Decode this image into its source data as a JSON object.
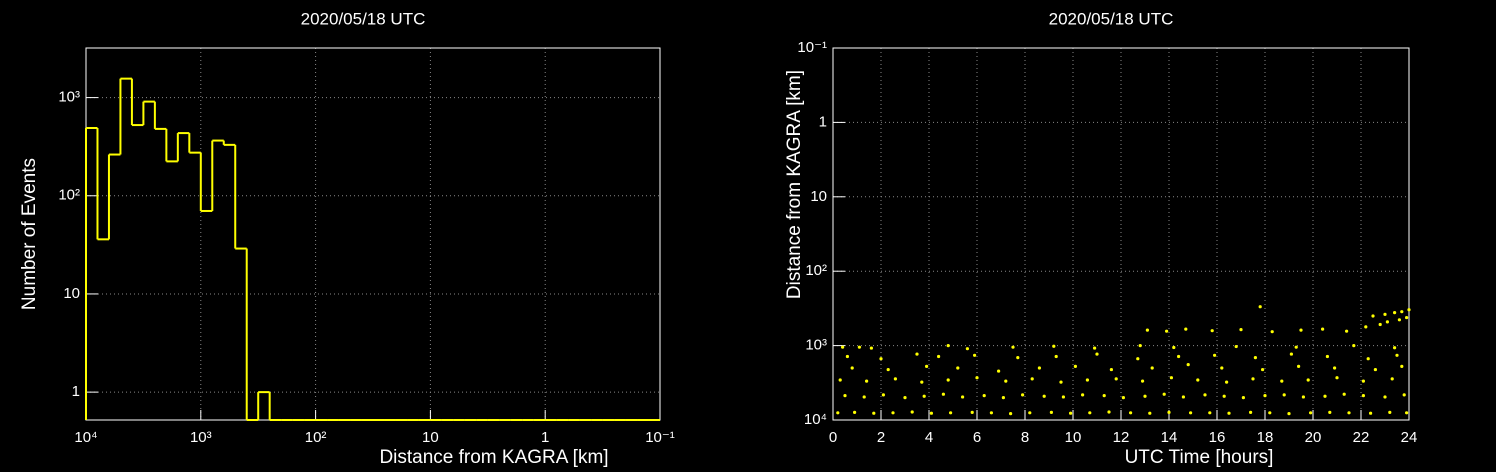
{
  "chart_data": [
    {
      "type": "histogram",
      "title": "2020/05/18 UTC",
      "xlabel": "Distance from KAGRA [km]",
      "ylabel": "Number of Events",
      "xscale": "log",
      "yscale": "log",
      "grid": true,
      "color": "#ffff00",
      "xlim": [
        10000,
        0.1
      ],
      "ylim": [
        0.52,
        3200
      ],
      "xticks": [
        {
          "value": 10000,
          "label": "10⁴"
        },
        {
          "value": 1000,
          "label": "10³"
        },
        {
          "value": 100,
          "label": "10²"
        },
        10,
        1,
        {
          "value": 0.1,
          "label": "10⁻¹"
        }
      ],
      "yticks": [
        1,
        10,
        {
          "value": 100,
          "label": "10²"
        },
        {
          "value": 1000,
          "label": "10³"
        }
      ],
      "bins": [
        10000,
        7943,
        6310,
        5012,
        3981,
        3162,
        2512,
        1995,
        1585,
        1259,
        1000,
        794.3,
        631.0,
        501.2,
        398.1,
        316.2,
        251.2,
        199.5,
        158.5,
        125.9,
        100,
        79.43,
        63.1,
        50.12,
        39.81,
        31.62,
        25.12,
        19.95,
        15.85,
        12.59,
        10,
        7.943,
        6.31,
        5.012,
        3.981,
        3.162,
        2.512,
        1.995,
        1.585,
        1.259,
        1,
        0.7943,
        0.631,
        0.5012,
        0.3981,
        0.3162,
        0.2512,
        0.1995,
        0.1585,
        0.1259,
        0.1
      ],
      "values": [
        490,
        36,
        263,
        1560,
        525,
        910,
        480,
        224,
        435,
        275,
        70,
        365,
        330,
        29,
        0,
        1,
        0,
        0,
        0,
        0,
        0,
        0,
        0,
        0,
        0,
        0,
        0,
        0,
        0,
        0,
        0,
        0,
        0,
        0,
        0,
        0,
        0,
        0,
        0,
        0,
        0,
        0,
        0,
        0,
        0,
        0,
        0,
        0,
        0,
        0
      ]
    },
    {
      "type": "scatter",
      "title": "2020/05/18 UTC",
      "xlabel": "UTC Time [hours]",
      "ylabel": "Distance from KAGRA [km]",
      "yscale": "log",
      "grid": true,
      "color": "#ffff00",
      "xlim": [
        0,
        24
      ],
      "ylim": [
        10000,
        0.1
      ],
      "xticks": [
        0,
        2,
        4,
        6,
        8,
        10,
        12,
        14,
        16,
        18,
        20,
        22,
        24
      ],
      "yticks": [
        {
          "value": 0.1,
          "label": "10⁻¹"
        },
        1,
        10,
        {
          "value": 100,
          "label": "10²"
        },
        {
          "value": 1000,
          "label": "10³"
        },
        {
          "value": 10000,
          "label": "10⁴"
        }
      ],
      "x": [
        0.2,
        0.9,
        1.7,
        2.5,
        3.3,
        4.1,
        4.9,
        5.8,
        6.6,
        7.4,
        8.2,
        9.1,
        9.9,
        10.7,
        11.5,
        12.4,
        13.2,
        14.0,
        14.9,
        15.7,
        16.5,
        17.4,
        18.2,
        19.0,
        19.9,
        20.7,
        21.5,
        22.4,
        23.2,
        23.9,
        0.5,
        1.3,
        2.1,
        3.0,
        3.8,
        4.6,
        5.4,
        6.3,
        7.1,
        7.9,
        8.8,
        9.6,
        10.4,
        11.3,
        12.1,
        13.0,
        13.8,
        14.6,
        15.5,
        16.3,
        17.1,
        18.0,
        18.8,
        19.6,
        20.5,
        21.3,
        22.1,
        23.0,
        23.8,
        0.3,
        1.4,
        2.6,
        3.7,
        4.8,
        6.0,
        7.2,
        8.3,
        9.5,
        10.6,
        11.8,
        12.9,
        14.1,
        15.2,
        16.4,
        17.5,
        18.7,
        19.8,
        21.0,
        22.1,
        23.3,
        0.8,
        2.3,
        3.9,
        5.2,
        6.9,
        8.6,
        10.1,
        11.6,
        13.3,
        14.8,
        16.2,
        17.9,
        19.4,
        20.9,
        22.6,
        23.7,
        0.6,
        2.0,
        3.5,
        4.4,
        5.9,
        7.7,
        9.3,
        11.0,
        12.7,
        14.4,
        15.9,
        17.6,
        19.1,
        20.6,
        22.3,
        23.5,
        0.4,
        1.1,
        1.6,
        4.8,
        5.6,
        7.5,
        9.2,
        10.9,
        12.8,
        14.2,
        16.8,
        19.3,
        21.7,
        23.4,
        13.1,
        13.9,
        14.7,
        15.8,
        17.0,
        18.3,
        19.5,
        20.4,
        21.4,
        22.2,
        22.8,
        23.1,
        23.6,
        23.9,
        22.5,
        23.0,
        23.4,
        23.7,
        24.0,
        17.8
      ],
      "values": [
        8000,
        7900,
        8100,
        8000,
        7800,
        8100,
        8000,
        7900,
        8000,
        8200,
        8000,
        7900,
        8100,
        8000,
        7800,
        8000,
        8100,
        7900,
        8000,
        8000,
        8100,
        7900,
        8000,
        8200,
        8000,
        7900,
        8000,
        8100,
        7900,
        8000,
        4700,
        4900,
        4600,
        5000,
        4800,
        4500,
        4900,
        4700,
        5000,
        4600,
        4800,
        4900,
        4600,
        4700,
        5000,
        4800,
        4500,
        4900,
        4600,
        4800,
        5000,
        4700,
        4600,
        4900,
        4800,
        4500,
        4700,
        4900,
        4600,
        2900,
        3000,
        2800,
        3100,
        2900,
        2700,
        3000,
        2800,
        3100,
        2900,
        2800,
        3000,
        2700,
        2900,
        3100,
        2800,
        3000,
        2900,
        2700,
        3000,
        2800,
        2000,
        2100,
        1900,
        2000,
        2200,
        2000,
        1900,
        2100,
        2000,
        1800,
        2000,
        2100,
        1900,
        2000,
        2100,
        1900,
        1400,
        1500,
        1300,
        1400,
        1350,
        1450,
        1400,
        1300,
        1500,
        1400,
        1350,
        1450,
        1300,
        1400,
        1500,
        1350,
        1050,
        1050,
        1080,
        1000,
        1100,
        1050,
        1020,
        1080,
        1000,
        1060,
        1030,
        1050,
        1000,
        1070,
        620,
        640,
        600,
        630,
        610,
        650,
        620,
        600,
        640,
        560,
        520,
        480,
        450,
        420,
        400,
        380,
        360,
        350,
        330,
        300
      ]
    }
  ]
}
